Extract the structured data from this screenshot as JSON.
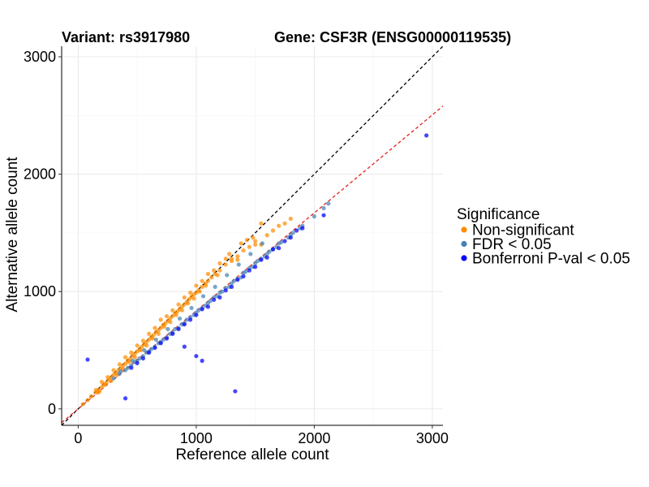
{
  "title_variant": "Variant: rs3917980",
  "title_gene": "Gene: CSF3R (ENSG00000119535)",
  "chart_data": {
    "type": "scatter",
    "xlabel": "Reference allele count",
    "ylabel": "Alternative allele count",
    "xlim": [
      -140,
      3090
    ],
    "ylim": [
      -140,
      3090
    ],
    "x_ticks": [
      0,
      1000,
      2000,
      3000
    ],
    "y_ticks": [
      0,
      1000,
      2000,
      3000
    ],
    "grid": true,
    "legend_position": "right",
    "legend_title": "Significance",
    "reference_lines": [
      {
        "name": "identity",
        "slope": 1.0,
        "intercept": 0,
        "color": "#000000",
        "style": "dashed"
      },
      {
        "name": "fit",
        "slope": 0.835,
        "intercept": 0,
        "color": "#e4211c",
        "style": "dashed"
      }
    ],
    "series": [
      {
        "name": "Non-significant",
        "color": "#ff8c00",
        "points": [
          [
            40,
            40
          ],
          [
            80,
            75
          ],
          [
            110,
            105
          ],
          [
            150,
            140
          ],
          [
            170,
            160
          ],
          [
            200,
            185
          ],
          [
            220,
            205
          ],
          [
            240,
            225
          ],
          [
            260,
            250
          ],
          [
            280,
            270
          ],
          [
            300,
            290
          ],
          [
            320,
            305
          ],
          [
            340,
            330
          ],
          [
            360,
            345
          ],
          [
            380,
            370
          ],
          [
            400,
            385
          ],
          [
            420,
            410
          ],
          [
            440,
            425
          ],
          [
            460,
            450
          ],
          [
            480,
            470
          ],
          [
            500,
            490
          ],
          [
            520,
            505
          ],
          [
            540,
            530
          ],
          [
            560,
            550
          ],
          [
            580,
            570
          ],
          [
            600,
            590
          ],
          [
            620,
            610
          ],
          [
            640,
            630
          ],
          [
            660,
            655
          ],
          [
            680,
            670
          ],
          [
            700,
            690
          ],
          [
            720,
            715
          ],
          [
            740,
            730
          ],
          [
            760,
            750
          ],
          [
            780,
            770
          ],
          [
            800,
            790
          ],
          [
            820,
            815
          ],
          [
            840,
            830
          ],
          [
            860,
            850
          ],
          [
            880,
            870
          ],
          [
            900,
            890
          ],
          [
            920,
            910
          ],
          [
            940,
            935
          ],
          [
            960,
            955
          ],
          [
            980,
            975
          ],
          [
            1000,
            990
          ],
          [
            1020,
            1010
          ],
          [
            1050,
            1040
          ],
          [
            1080,
            1070
          ],
          [
            1100,
            1090
          ],
          [
            1130,
            1120
          ],
          [
            1160,
            1150
          ],
          [
            1200,
            1180
          ],
          [
            1250,
            1230
          ],
          [
            1300,
            1260
          ],
          [
            1350,
            1300
          ],
          [
            1400,
            1350
          ],
          [
            1450,
            1380
          ],
          [
            1500,
            1400
          ],
          [
            1550,
            1400
          ],
          [
            1600,
            1480
          ],
          [
            1650,
            1520
          ],
          [
            1750,
            1580
          ],
          [
            1800,
            1620
          ],
          [
            150,
            160
          ],
          [
            250,
            270
          ],
          [
            350,
            380
          ],
          [
            450,
            480
          ],
          [
            550,
            580
          ],
          [
            650,
            690
          ],
          [
            750,
            790
          ],
          [
            850,
            890
          ],
          [
            950,
            990
          ],
          [
            1050,
            1090
          ],
          [
            1150,
            1180
          ],
          [
            1250,
            1280
          ],
          [
            1300,
            1280
          ],
          [
            1430,
            1440
          ],
          [
            1480,
            1460
          ],
          [
            1550,
            1580
          ],
          [
            1200,
            1240
          ],
          [
            900,
            950
          ],
          [
            700,
            760
          ],
          [
            500,
            540
          ],
          [
            300,
            330
          ],
          [
            200,
            230
          ],
          [
            400,
            440
          ],
          [
            600,
            640
          ],
          [
            800,
            840
          ],
          [
            1000,
            1050
          ],
          [
            1100,
            1150
          ],
          [
            1280,
            1320
          ],
          [
            1380,
            1410
          ],
          [
            180,
            150
          ],
          [
            280,
            240
          ],
          [
            380,
            340
          ],
          [
            480,
            440
          ],
          [
            580,
            540
          ],
          [
            680,
            640
          ],
          [
            780,
            740
          ],
          [
            880,
            840
          ],
          [
            980,
            940
          ],
          [
            1080,
            1050
          ],
          [
            1180,
            1140
          ],
          [
            1350,
            1270
          ],
          [
            1500,
            1430
          ],
          [
            1700,
            1560
          ],
          [
            170,
            140
          ],
          [
            230,
            210
          ],
          [
            330,
            290
          ],
          [
            430,
            400
          ],
          [
            530,
            500
          ],
          [
            630,
            600
          ],
          [
            730,
            700
          ],
          [
            830,
            800
          ],
          [
            930,
            900
          ],
          [
            1030,
            1000
          ]
        ]
      },
      {
        "name": "FDR < 0.05",
        "color": "#4682b4",
        "points": [
          [
            300,
            260
          ],
          [
            350,
            300
          ],
          [
            400,
            330
          ],
          [
            450,
            370
          ],
          [
            500,
            410
          ],
          [
            550,
            450
          ],
          [
            600,
            490
          ],
          [
            650,
            530
          ],
          [
            700,
            570
          ],
          [
            750,
            610
          ],
          [
            800,
            650
          ],
          [
            850,
            690
          ],
          [
            900,
            730
          ],
          [
            950,
            780
          ],
          [
            1000,
            820
          ],
          [
            1050,
            860
          ],
          [
            1100,
            900
          ],
          [
            1150,
            950
          ],
          [
            1200,
            990
          ],
          [
            1250,
            1030
          ],
          [
            1300,
            1070
          ],
          [
            1350,
            1110
          ],
          [
            1400,
            1160
          ],
          [
            1450,
            1200
          ],
          [
            1500,
            1240
          ],
          [
            1550,
            1280
          ],
          [
            1600,
            1320
          ],
          [
            1650,
            1360
          ],
          [
            1700,
            1410
          ],
          [
            1800,
            1480
          ],
          [
            1900,
            1560
          ],
          [
            2000,
            1640
          ],
          [
            2080,
            1710
          ],
          [
            2120,
            1750
          ],
          [
            420,
            350
          ],
          [
            520,
            430
          ],
          [
            620,
            510
          ],
          [
            720,
            590
          ],
          [
            820,
            680
          ],
          [
            920,
            760
          ],
          [
            1020,
            840
          ],
          [
            1120,
            920
          ],
          [
            1220,
            1000
          ],
          [
            1320,
            1090
          ],
          [
            1420,
            1170
          ],
          [
            1520,
            1260
          ],
          [
            1620,
            1340
          ],
          [
            1720,
            1420
          ],
          [
            1820,
            1500
          ],
          [
            480,
            400
          ],
          [
            580,
            480
          ],
          [
            680,
            560
          ],
          [
            780,
            640
          ],
          [
            880,
            720
          ],
          [
            980,
            800
          ],
          [
            1080,
            880
          ],
          [
            1180,
            960
          ],
          [
            1280,
            1040
          ],
          [
            1380,
            1120
          ],
          [
            1480,
            1210
          ],
          [
            1580,
            1300
          ],
          [
            1680,
            1380
          ],
          [
            1780,
            1460
          ],
          [
            1880,
            1540
          ],
          [
            360,
            320
          ],
          [
            460,
            410
          ],
          [
            560,
            500
          ],
          [
            660,
            590
          ],
          [
            760,
            680
          ],
          [
            860,
            770
          ],
          [
            960,
            860
          ],
          [
            1060,
            960
          ],
          [
            1160,
            1040
          ],
          [
            1260,
            1140
          ],
          [
            1360,
            1230
          ],
          [
            1460,
            1320
          ],
          [
            1560,
            1410
          ]
        ]
      },
      {
        "name": "Bonferroni P-val < 0.05",
        "color": "#0000ff",
        "points": [
          [
            2950,
            2330
          ],
          [
            2080,
            1650
          ],
          [
            1850,
            1520
          ],
          [
            1750,
            1430
          ],
          [
            1650,
            1360
          ],
          [
            1550,
            1270
          ],
          [
            1450,
            1180
          ],
          [
            1350,
            1100
          ],
          [
            1250,
            1010
          ],
          [
            1150,
            930
          ],
          [
            1050,
            850
          ],
          [
            950,
            760
          ],
          [
            850,
            680
          ],
          [
            750,
            600
          ],
          [
            650,
            520
          ],
          [
            550,
            430
          ],
          [
            450,
            350
          ],
          [
            80,
            420
          ],
          [
            400,
            90
          ],
          [
            1330,
            150
          ],
          [
            1050,
            410
          ],
          [
            1000,
            450
          ],
          [
            900,
            530
          ],
          [
            1200,
            950
          ],
          [
            1300,
            1040
          ],
          [
            1400,
            1130
          ],
          [
            1500,
            1210
          ],
          [
            1600,
            1290
          ],
          [
            1700,
            1370
          ],
          [
            1800,
            1460
          ],
          [
            1900,
            1540
          ],
          [
            1100,
            870
          ],
          [
            1000,
            800
          ],
          [
            900,
            720
          ],
          [
            800,
            640
          ],
          [
            700,
            560
          ],
          [
            600,
            480
          ],
          [
            500,
            390
          ]
        ]
      }
    ]
  }
}
